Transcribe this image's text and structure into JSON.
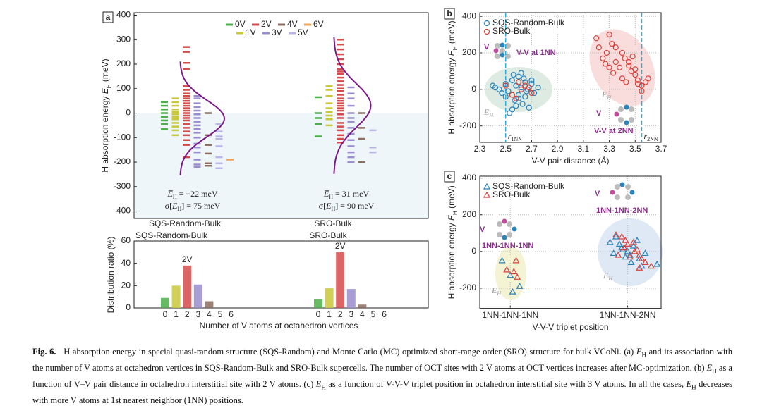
{
  "caption": {
    "label": "Fig. 6.",
    "runs": [
      "H absorption energy in special quasi-random structure (SQS-Random) and Monte Carlo (MC) optimized short-range order (SRO) structure for bulk VCoNi. (a) ",
      "E",
      "H",
      " and its association with the number of V atoms at octahedron vertices in SQS-Random-Bulk and SRO-Bulk supercells. The number of OCT sites with 2 V atoms at OCT vertices increases after MC-optimization. (b) ",
      "E",
      "H",
      " as a function of V–V pair distance in octahedron interstitial site with 2 V atoms. (c) ",
      "E",
      "H",
      " as a function of V-V-V triplet position in octahedron interstitial site with 3 V atoms. In all the cases, ",
      "E",
      "H",
      " decreases with more V atoms at 1st nearest neighbor (1NN) positions."
    ]
  },
  "chart_data": [
    {
      "type": "strip",
      "panel": "a",
      "ylabel": [
        "H absorption energy ",
        "E",
        "H",
        " (meV)"
      ],
      "ylim": [
        -430,
        410
      ],
      "yticks": [
        -400,
        -300,
        -200,
        -100,
        0,
        100,
        200,
        300,
        400
      ],
      "groups": [
        "SQS-Random-Bulk",
        "SRO-Bulk"
      ],
      "series": [
        {
          "name": "0V",
          "color": "#4daf4a",
          "values": [
            [
              45,
              30,
              15,
              0,
              -15,
              -30,
              -45,
              -65
            ],
            [
              65,
              0,
              -20,
              -45,
              -95
            ]
          ]
        },
        {
          "name": "1V",
          "color": "#c8c83a",
          "values": [
            [
              60,
              45,
              30,
              15,
              5,
              -5,
              -15,
              -25,
              -40,
              -55,
              -70,
              -90
            ],
            [
              110,
              95,
              70,
              40,
              20,
              5,
              -10,
              -25,
              -50
            ]
          ]
        },
        {
          "name": "2V",
          "color": "#d64b4b",
          "values": [
            [
              270,
              250,
              205,
              180,
              110,
              95,
              80,
              70,
              60,
              50,
              40,
              30,
              20,
              10,
              0,
              -10,
              -20,
              -30,
              -45,
              -60,
              -75,
              -90,
              -110,
              -130,
              -180
            ],
            [
              300,
              280,
              260,
              240,
              220,
              200,
              180,
              170,
              160,
              145,
              130,
              115,
              100,
              90,
              75,
              60,
              50,
              40,
              30,
              20,
              10,
              -5,
              -20,
              -40,
              -55,
              -70,
              -90,
              -105,
              -120
            ]
          ]
        },
        {
          "name": "3V",
          "color": "#9a8ccf",
          "values": [
            [
              70,
              60,
              40,
              25,
              10,
              -5,
              -20,
              -35,
              -50,
              -65,
              -80,
              -100,
              -125,
              -140,
              -160,
              -190,
              -210,
              -220
            ],
            [
              105,
              80,
              60,
              30,
              0,
              -20,
              -35,
              -60,
              -85,
              -110,
              -135,
              -160,
              -180,
              -200
            ]
          ]
        },
        {
          "name": "4V",
          "color": "#8c6d5f",
          "values": [
            [
              0,
              -90,
              -130,
              -165,
              -205,
              -215
            ],
            [
              0,
              -60,
              -105,
              -200
            ]
          ]
        },
        {
          "name": "5V",
          "color": "#b9b6e6",
          "values": [
            [
              -45,
              -75,
              -95,
              -105,
              -135,
              -180,
              -205,
              -225
            ],
            [
              -70,
              -140,
              -160
            ]
          ]
        },
        {
          "name": "6V",
          "color": "#f3a456",
          "values": [
            [
              -190
            ],
            []
          ]
        }
      ],
      "stats": [
        {
          "mean": -22,
          "mean_text": "−22 meV",
          "sigma": 75,
          "sigma_text": "75 meV"
        },
        {
          "mean": 31,
          "mean_text": "31 meV",
          "sigma": 90,
          "sigma_text": "90 meV"
        }
      ],
      "stat_symbols": {
        "mean": [
          "E̅",
          "H",
          " = "
        ],
        "sigma": [
          "σ[",
          "E",
          "H",
          "] = "
        ]
      },
      "curve_color": "#7b1a86"
    },
    {
      "type": "bar",
      "ylabel": "Distribution ratio (%)",
      "xlabel": "Number of V atoms at octahedron vertices",
      "categories": [
        "0",
        "1",
        "2",
        "3",
        "4",
        "5",
        "6"
      ],
      "colors": [
        "#4daf4a",
        "#c8c83a",
        "#d64b4b",
        "#9a8ccf",
        "#8c6d5f",
        "#b9b6e6",
        "#f3a456"
      ],
      "series": [
        {
          "name": "SQS-Random-Bulk",
          "values": [
            9,
            20,
            38,
            21,
            6,
            0,
            0
          ]
        },
        {
          "name": "SRO-Bulk",
          "values": [
            8,
            18,
            50,
            17,
            3,
            0,
            0
          ]
        }
      ],
      "ylim": [
        0,
        60
      ],
      "yticks": [
        0,
        20,
        40,
        60
      ],
      "annotation": "2V"
    },
    {
      "type": "scatter",
      "panel": "b",
      "ylabel": [
        "H absorption energy ",
        "E",
        "H",
        " (meV)"
      ],
      "xlabel": "V-V pair distance (Å)",
      "xlim": [
        2.3,
        3.7
      ],
      "xticks": [
        2.3,
        2.5,
        2.7,
        2.9,
        3.1,
        3.3,
        3.5,
        3.7
      ],
      "ylim": [
        -290,
        420
      ],
      "yticks": [
        -200,
        0,
        200,
        400
      ],
      "grid": true,
      "legend": "upper left",
      "marker": "circle",
      "series": [
        {
          "name": "SQS-Random-Bulk",
          "color": "#2b83ba",
          "x": [
            2.4,
            2.42,
            2.45,
            2.47,
            2.5,
            2.52,
            2.55,
            2.57,
            2.58,
            2.6,
            2.6,
            2.62,
            2.63,
            2.65,
            2.65,
            2.67,
            2.68,
            2.7,
            2.72,
            2.75,
            2.53,
            2.56,
            2.6,
            2.64,
            2.58,
            2.62,
            2.66,
            2.5,
            2.55,
            2.7
          ],
          "values": [
            20,
            10,
            0,
            -20,
            30,
            -10,
            50,
            -60,
            20,
            70,
            -30,
            10,
            -80,
            40,
            -40,
            0,
            -100,
            30,
            -20,
            10,
            -130,
            80,
            -50,
            60,
            -90,
            90,
            -10,
            -40,
            -110,
            50
          ]
        },
        {
          "name": "SRO-Bulk",
          "color": "#d7403a",
          "x": [
            3.2,
            3.22,
            3.25,
            3.28,
            3.3,
            3.32,
            3.35,
            3.38,
            3.4,
            3.42,
            3.45,
            3.47,
            3.5,
            3.52,
            3.55,
            3.58,
            3.6,
            3.3,
            3.35,
            3.4,
            3.45,
            3.5,
            3.55,
            3.27,
            3.33,
            3.43,
            3.48,
            3.52,
            2.5,
            2.55,
            2.6,
            2.62,
            2.65,
            2.7,
            2.58,
            2.68
          ],
          "values": [
            280,
            230,
            170,
            200,
            300,
            250,
            150,
            120,
            200,
            170,
            130,
            100,
            80,
            50,
            20,
            40,
            60,
            120,
            230,
            60,
            150,
            110,
            -10,
            140,
            90,
            40,
            180,
            30,
            20,
            -30,
            40,
            0,
            20,
            -20,
            -50,
            10
          ]
        }
      ],
      "vline_color": "#2ab0d8",
      "vlines": [
        {
          "value": 2.5,
          "label": [
            "r",
            "1NN"
          ]
        },
        {
          "value": 3.55,
          "label": [
            "r",
            "2NN"
          ]
        }
      ],
      "annotations": [
        "V-V at 1NN",
        "V-V at 2NN",
        "V"
      ]
    },
    {
      "type": "scatter",
      "panel": "c",
      "ylabel": [
        "H absorption energy ",
        "E",
        "H",
        " (meV)"
      ],
      "xlabel": "V-V-V triplet position",
      "xlim": [
        -0.26,
        1.285
      ],
      "xticks": [
        {
          "value": 0,
          "label": "1NN-1NN-1NN"
        },
        {
          "value": 1,
          "label": "1NN-1NN-2NN"
        }
      ],
      "ylim": [
        -310,
        410
      ],
      "yticks": [
        -200,
        0,
        200,
        400
      ],
      "grid": true,
      "legend": "upper left",
      "marker": "triangle",
      "series": [
        {
          "name": "SQS-Random-Bulk",
          "color": "#2b83ba",
          "x": [
            -0.07,
            0.0,
            0.08,
            0.02,
            0.85,
            0.9,
            0.95,
            1.0,
            1.02,
            1.05,
            1.1,
            1.15,
            0.88,
            0.93,
            0.98,
            1.08,
            1.12,
            0.96,
            1.03,
            1.25
          ],
          "values": [
            -50,
            -130,
            -190,
            -220,
            50,
            80,
            20,
            0,
            -20,
            30,
            -40,
            -10,
            -10,
            40,
            -30,
            60,
            -80,
            10,
            -60,
            -70
          ]
        },
        {
          "name": "SRO-Bulk",
          "color": "#d7403a",
          "x": [
            -0.03,
            0.03,
            0.06,
            0.05,
            0.9,
            0.95,
            0.98,
            1.0,
            1.05,
            1.08,
            1.1,
            1.12,
            1.15,
            1.2,
            0.92,
            1.02,
            1.1,
            0.97,
            1.06
          ],
          "values": [
            -100,
            -110,
            -140,
            -50,
            90,
            80,
            60,
            40,
            50,
            10,
            -20,
            -40,
            -60,
            -80,
            -20,
            -30,
            -90,
            20,
            0
          ]
        }
      ],
      "annotations": [
        "V"
      ]
    }
  ]
}
